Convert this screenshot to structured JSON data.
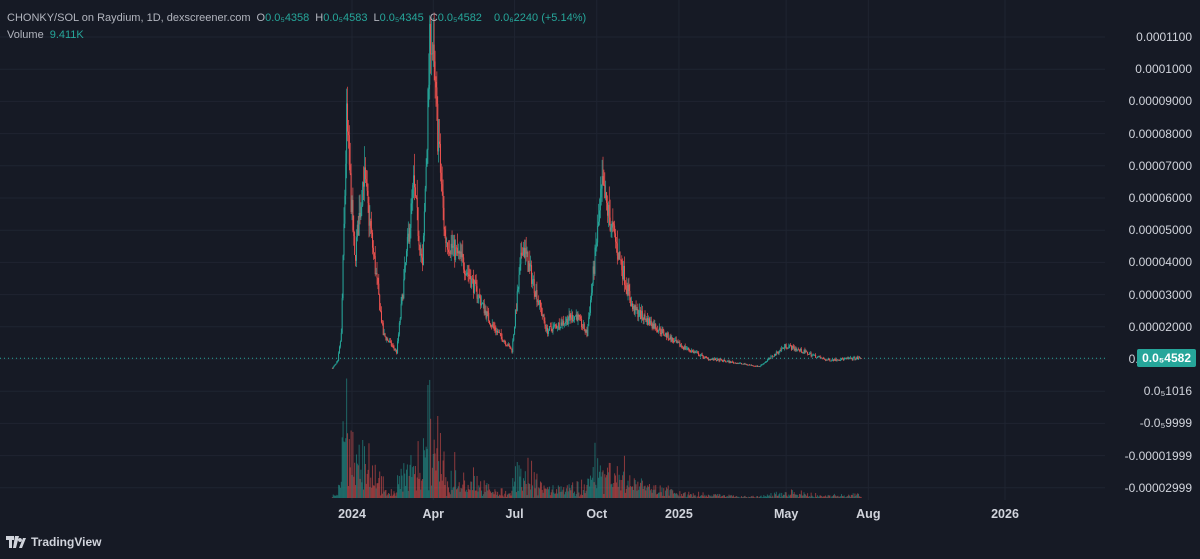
{
  "header": {
    "title": "CHONKY/SOL on Raydium, 1D, dexscreener.com",
    "ohlc": [
      {
        "key": "O",
        "value": "0.0₅4358"
      },
      {
        "key": "H",
        "value": "0.0₅4583"
      },
      {
        "key": "L",
        "value": "0.0₅4345"
      },
      {
        "key": "C",
        "value": "0.0₅4582"
      }
    ],
    "change": "0.0₆2240 (+5.14%)",
    "volume_label": "Volume",
    "volume_value": "9.411K"
  },
  "last_price_badge": "0.0₅4582",
  "brand": "TradingView",
  "colors": {
    "background": "#161a25",
    "up": "#26a69a",
    "down": "#ef5350",
    "text": "#d1d4dc",
    "grid": "#1f2431"
  },
  "chart_data": {
    "type": "candlestick",
    "title": "CHONKY/SOL on Raydium, 1D, dexscreener.com",
    "interval": "1D",
    "y_tick_labels": [
      "0.0001100",
      "0.0001000",
      "0.00009000",
      "0.00008000",
      "0.00007000",
      "0.00006000",
      "0.00005000",
      "0.00004000",
      "0.00003000",
      "0.00002000",
      "0.00001000",
      "0.0₅1016",
      "-0.0₅9999",
      "-0.00001999",
      "-0.00002999"
    ],
    "x_tick_labels": [
      "2024",
      "Apr",
      "Jul",
      "Oct",
      "2025",
      "May",
      "Aug",
      "2026"
    ],
    "ylim": [
      -3.4e-05,
      0.000112
    ],
    "last_close": 4.582e-06,
    "price_path_approx": [
      {
        "date": "2023-12-10",
        "price": 1.5e-06
      },
      {
        "date": "2023-12-16",
        "price": 3.5e-06
      },
      {
        "date": "2023-12-20",
        "price": 1.2e-05
      },
      {
        "date": "2023-12-26",
        "price": 7.8e-05
      },
      {
        "date": "2024-01-04",
        "price": 3.5e-05
      },
      {
        "date": "2024-01-14",
        "price": 6.2e-05
      },
      {
        "date": "2024-02-05",
        "price": 1.2e-05
      },
      {
        "date": "2024-02-20",
        "price": 6.5e-06
      },
      {
        "date": "2024-03-10",
        "price": 5.8e-05
      },
      {
        "date": "2024-03-20",
        "price": 3.2e-05
      },
      {
        "date": "2024-03-29",
        "price": 0.000108
      },
      {
        "date": "2024-04-14",
        "price": 4.2e-05
      },
      {
        "date": "2024-05-05",
        "price": 3.4e-05
      },
      {
        "date": "2024-06-05",
        "price": 1.5e-05
      },
      {
        "date": "2024-06-28",
        "price": 7e-06
      },
      {
        "date": "2024-07-10",
        "price": 4e-05
      },
      {
        "date": "2024-08-06",
        "price": 1.3e-05
      },
      {
        "date": "2024-09-08",
        "price": 1.8e-05
      },
      {
        "date": "2024-09-20",
        "price": 1.2e-05
      },
      {
        "date": "2024-10-07",
        "price": 5.7e-05
      },
      {
        "date": "2024-11-10",
        "price": 2e-05
      },
      {
        "date": "2024-12-30",
        "price": 9e-06
      },
      {
        "date": "2025-02-01",
        "price": 4.5e-06
      },
      {
        "date": "2025-04-01",
        "price": 2e-06
      },
      {
        "date": "2025-05-01",
        "price": 8.5e-06
      },
      {
        "date": "2025-06-15",
        "price": 4e-06
      },
      {
        "date": "2025-07-24",
        "price": 4.582e-06
      }
    ],
    "volume_last": "9.411K"
  }
}
